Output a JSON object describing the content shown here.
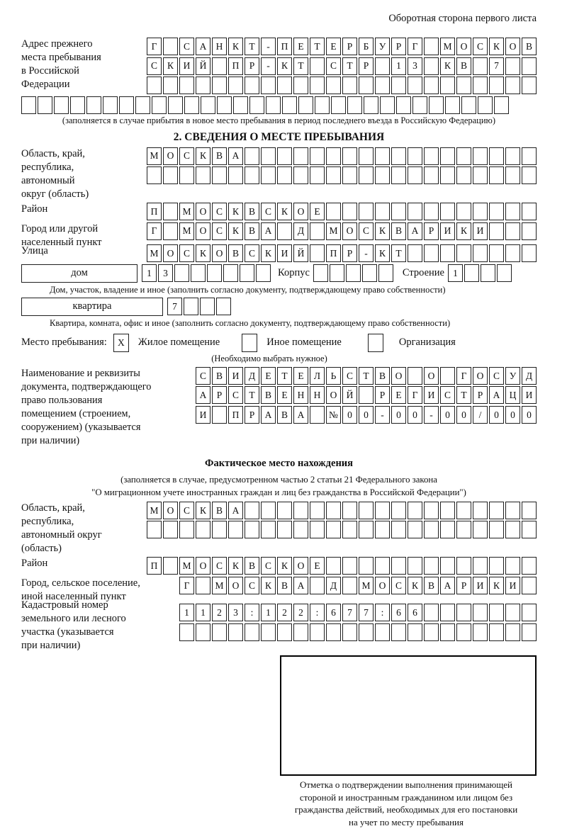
{
  "header": {
    "side_note": "Оборотная сторона первого листа"
  },
  "prev_address": {
    "label_lines": [
      "Адрес прежнего",
      "места пребывания",
      "в Российской",
      "Федерации"
    ],
    "rows": [
      {
        "cells": "Г САНКТ-ПЕТЕРБУРГ МОСКОВ",
        "len": 24
      },
      {
        "cells": "СКИЙ ПР-КТ СТР 13 КВ 7",
        "len": 24
      },
      {
        "cells": "",
        "len": 24
      },
      {
        "cells": "",
        "len": 30
      }
    ],
    "note": "(заполняется в случае прибытия в новое место пребывания в период последнего въезда в Российскую Федерацию)"
  },
  "section2": {
    "title": "2. СВЕДЕНИЯ О МЕСТЕ ПРЕБЫВАНИЯ",
    "region": {
      "label_lines": [
        "Область, край,",
        "республика,",
        "автономный",
        "округ (область)"
      ],
      "rows": [
        {
          "cells": "МОСКВА",
          "len": 24
        },
        {
          "cells": "",
          "len": 24
        }
      ]
    },
    "district": {
      "label": "Район",
      "row": {
        "cells": "П МОСКВСКОЕ",
        "len": 24
      }
    },
    "city": {
      "label_lines": [
        "Город или другой",
        "населенный пункт"
      ],
      "row": {
        "cells": "Г МОСКВА Д МОСКВАРИКИ",
        "len": 24
      }
    },
    "street": {
      "label": "Улица",
      "row": {
        "cells": "МОСКОВСКИЙ ПР-КТ",
        "len": 24
      }
    },
    "house": {
      "box_label": "дом",
      "row": {
        "cells": "13",
        "len": 8
      },
      "korpus_label": "Корпус",
      "korpus_row": {
        "cells": "",
        "len": 5
      },
      "stroenie_label": "Строение",
      "stroenie_row": {
        "cells": "1",
        "len": 4
      },
      "note": "Дом, участок, владение и иное (заполнить согласно документу, подтверждающему право собственности)"
    },
    "apartment": {
      "box_label": "квартира",
      "row": {
        "cells": "7",
        "len": 4
      },
      "note": "Квартира, комната, офис и иное (заполнить согласно документу, подтверждающему право собственности)"
    },
    "stay": {
      "label": "Место пребывания:",
      "options": [
        {
          "label": "Жилое помещение",
          "mark": "X"
        },
        {
          "label": "Иное помещение",
          "mark": ""
        },
        {
          "label": "Организация",
          "mark": ""
        }
      ],
      "note": "(Необходимо выбрать нужное)"
    },
    "document": {
      "label_lines": [
        "Наименование и реквизиты",
        "документа, подтверждающего",
        "право пользования",
        "помещением (строением,",
        "сооружением) (указывается",
        "при наличии)"
      ],
      "rows": [
        {
          "cells": "СВИДЕТЕЛЬСТВО О ГОСУД",
          "len": 21
        },
        {
          "cells": "АРСТВЕННОЙ РЕГИСТРАЦИ",
          "len": 21
        },
        {
          "cells": "И ПРАВА №00-00-00/000",
          "len": 21
        }
      ]
    }
  },
  "actual": {
    "title": "Фактическое место нахождения",
    "note_lines": [
      "(заполняется в случае, предусмотренном частью 2 статьи 21 Федерального закона",
      "\"О миграционном учете иностранных граждан и лиц без гражданства в Российской Федерации\")"
    ],
    "region": {
      "label_lines": [
        "Область, край,",
        "республика,",
        "автономный округ",
        "(область)"
      ],
      "rows": [
        {
          "cells": "МОСКВА",
          "len": 24
        },
        {
          "cells": "",
          "len": 24
        }
      ]
    },
    "district": {
      "label": "Район",
      "row": {
        "cells": "П МОСКВСКОЕ",
        "len": 24
      }
    },
    "city": {
      "label_lines": [
        "Город, сельское поселение,",
        "иной населенный пункт"
      ],
      "row": {
        "cells": "Г МОСКВА Д МОСКВАРИКИ",
        "len": 22
      }
    },
    "cadastral": {
      "label_lines": [
        "Кадастровый номер",
        "земельного или лесного",
        "участка (указывается",
        "при наличии)"
      ],
      "rows": [
        {
          "cells": "1123:122:677:66",
          "len": 22
        },
        {
          "cells": "",
          "len": 22
        }
      ]
    }
  },
  "stamp": {
    "caption_lines": [
      "Отметка о подтверждении выполнения принимающей",
      "стороной и иностранным гражданином или лицом без",
      "гражданства действий, необходимых для его постановки",
      "на учет по месту пребывания"
    ]
  }
}
